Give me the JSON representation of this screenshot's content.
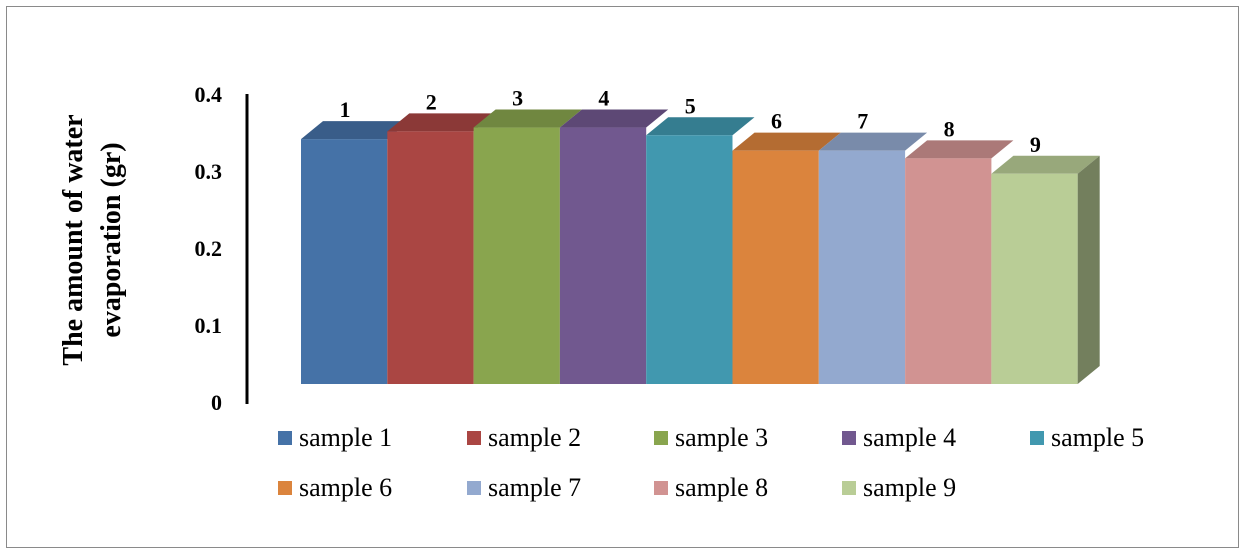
{
  "chart_data": {
    "type": "bar",
    "title": "",
    "xlabel": "",
    "ylabel": "The amount of water evaporation (gr)",
    "ylabel_lines": [
      "The amount of water",
      "evaporation (gr)"
    ],
    "ylim": [
      0,
      0.4
    ],
    "yticks": [
      "0",
      "0.1",
      "0.2",
      "0.3",
      "0.4"
    ],
    "categories": [
      "1",
      "2",
      "3",
      "4",
      "5",
      "6",
      "7",
      "8",
      "9"
    ],
    "series": [
      {
        "name": "sample 1",
        "value": 0.37,
        "color": "#4572A7"
      },
      {
        "name": "sample 2",
        "value": 0.38,
        "color": "#AA4643"
      },
      {
        "name": "sample 3",
        "value": 0.385,
        "color": "#89A54E"
      },
      {
        "name": "sample 4",
        "value": 0.385,
        "color": "#71588F"
      },
      {
        "name": "sample 5",
        "value": 0.375,
        "color": "#4198AF"
      },
      {
        "name": "sample 6",
        "value": 0.355,
        "color": "#DB843D"
      },
      {
        "name": "sample 7",
        "value": 0.355,
        "color": "#93A9CF"
      },
      {
        "name": "sample 8",
        "value": 0.345,
        "color": "#D19392"
      },
      {
        "name": "sample 9",
        "value": 0.325,
        "color": "#B9CD96"
      }
    ],
    "legend_position": "bottom",
    "grid": false
  }
}
